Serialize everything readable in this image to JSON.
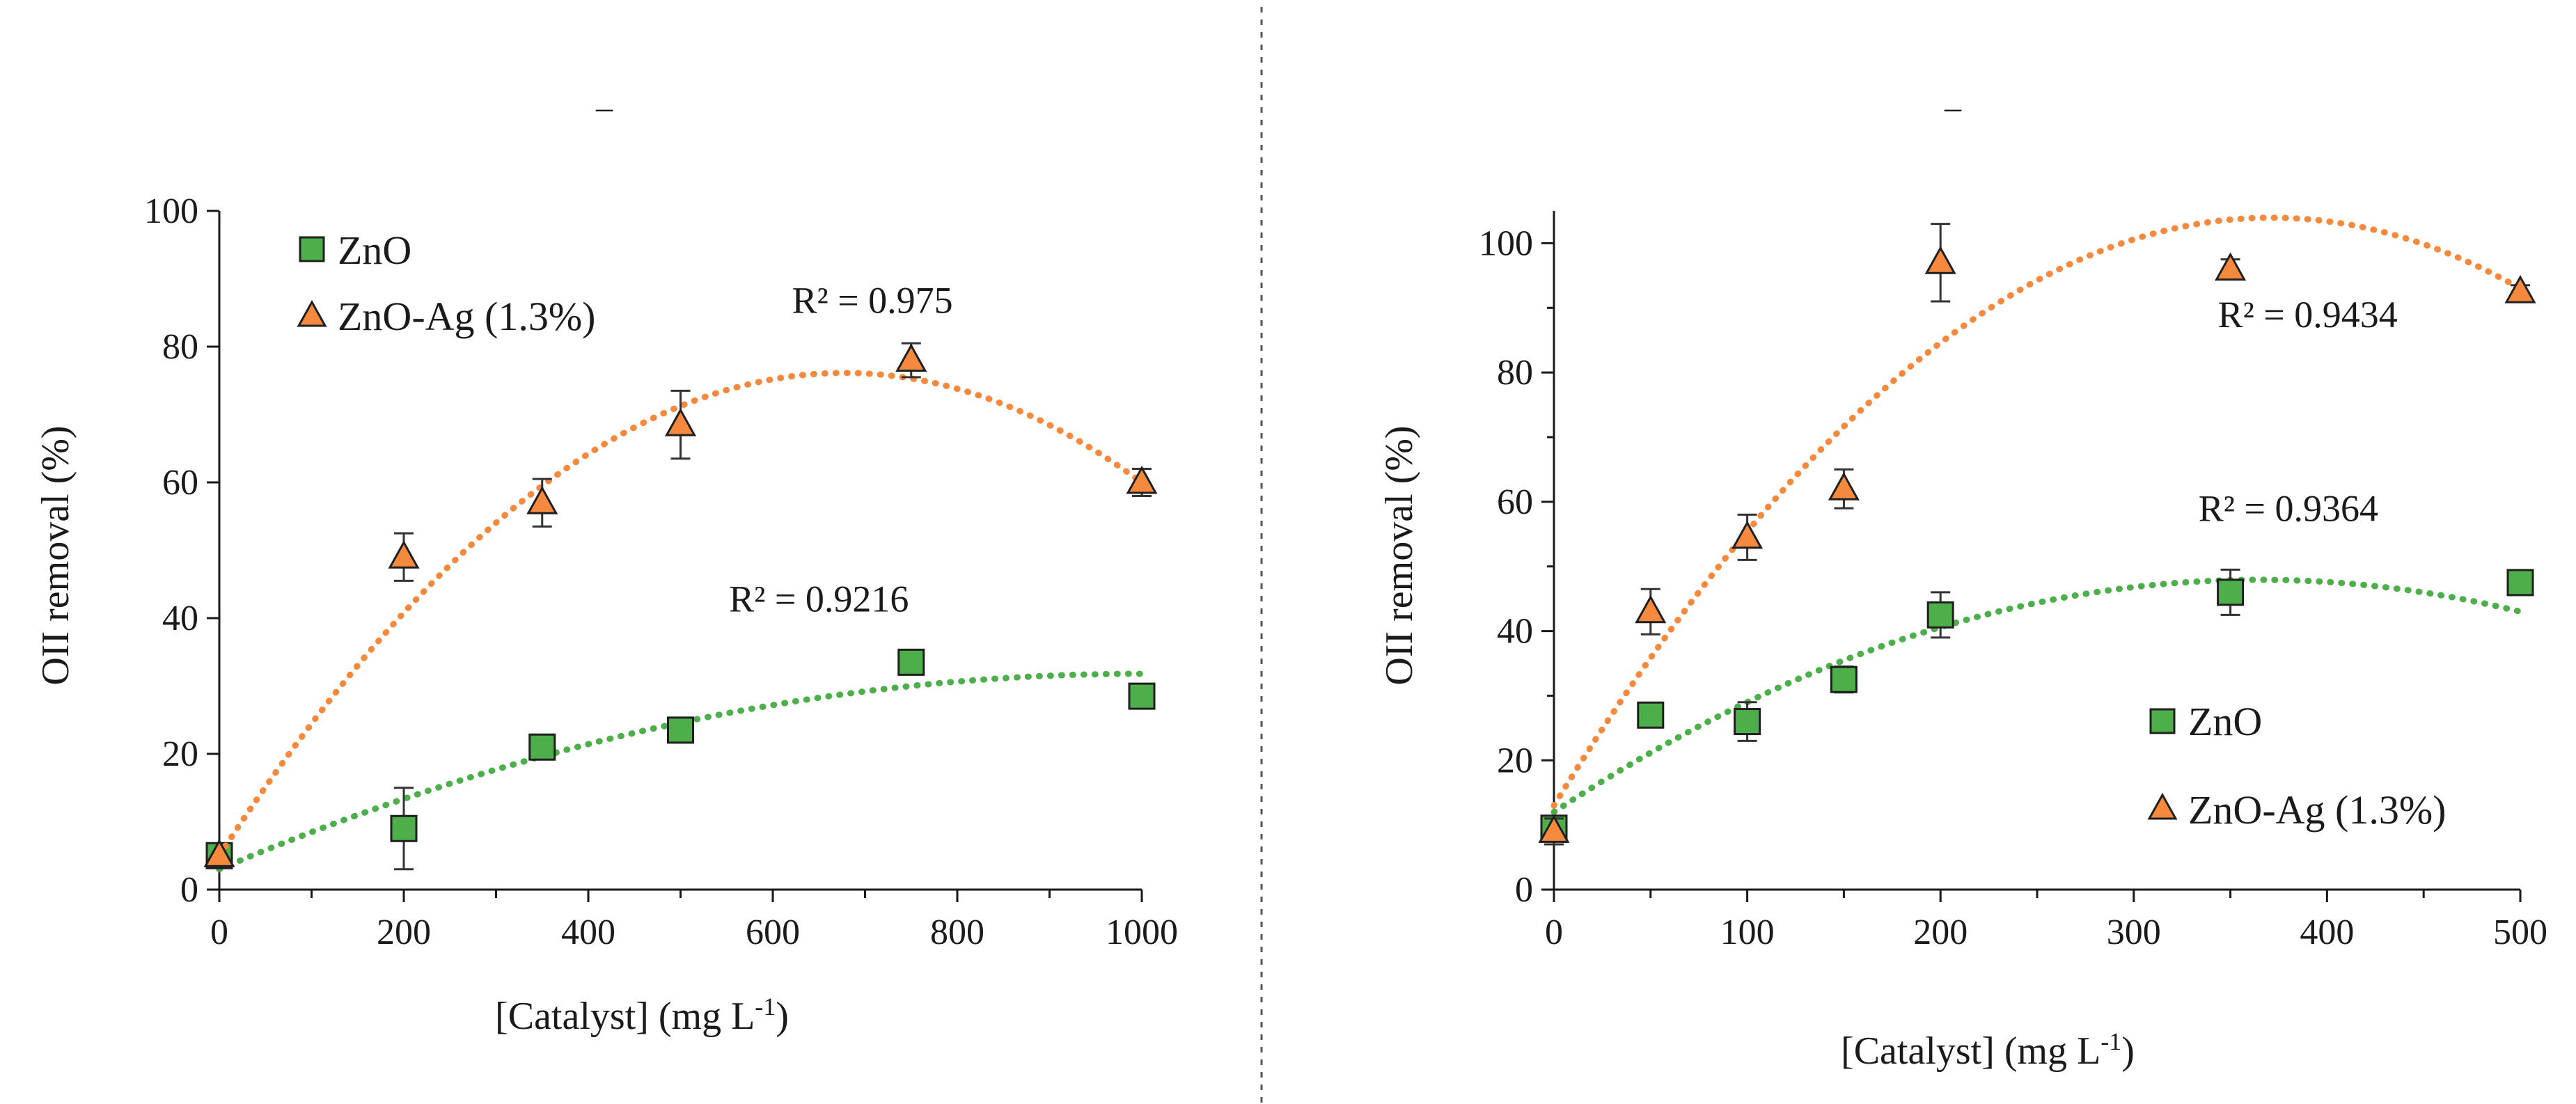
{
  "figure": {
    "background": "#ffffff",
    "divider_color": "#555555"
  },
  "colors": {
    "zno": "#4daf4a",
    "znoag": "#f58a3f",
    "zno_edge": "#1f1f1f",
    "znoag_edge": "#1f1f1f"
  },
  "chart_data": [
    {
      "type": "scatter",
      "panel_label": "–",
      "xlabel": "[Catalyst] (mg L",
      "xlabel_sup": "-1",
      "xlabel_end": ")",
      "ylabel": "OII removal (%)",
      "xlim": [
        0,
        1000
      ],
      "ylim": [
        0,
        100
      ],
      "xticks": [
        0,
        200,
        400,
        600,
        800,
        1000
      ],
      "xtick_labels": [
        "0",
        "200",
        "400",
        "600",
        "800",
        "1000"
      ],
      "minor_x_step": 100,
      "yticks": [
        0,
        20,
        40,
        60,
        80,
        100
      ],
      "ytick_labels": [
        "0",
        "20",
        "40",
        "60",
        "80",
        "100"
      ],
      "minor_y_step": 0,
      "legend": {
        "position": "top-left",
        "entries": [
          "ZnO",
          "ZnO-Ag (1.3%)"
        ]
      },
      "series": [
        {
          "name": "ZnO",
          "marker": "square",
          "color": "#4daf4a",
          "x": [
            0,
            200,
            350,
            500,
            750,
            1000
          ],
          "y": [
            5,
            9,
            21,
            23.5,
            33.5,
            28.5
          ],
          "err": [
            0,
            6,
            0,
            0,
            0,
            0
          ],
          "trend": [
            3,
            0.0576,
            -2.88e-05
          ],
          "trend_label": "R² = 0.9216",
          "label_anchor": [
            650,
            41
          ]
        },
        {
          "name": "ZnO-Ag (1.3%)",
          "marker": "triangle",
          "color": "#f58a3f",
          "x": [
            0,
            200,
            350,
            500,
            750,
            1000
          ],
          "y": [
            5,
            49,
            57,
            68.5,
            78,
            60
          ],
          "err": [
            0,
            3.5,
            3.5,
            5,
            2.5,
            2
          ],
          "trend": [
            5,
            0.21,
            -0.000155
          ],
          "trend_label": "R² = 0.975",
          "label_anchor": [
            708,
            85
          ]
        }
      ]
    },
    {
      "type": "scatter",
      "panel_label": "–",
      "xlabel": "[Catalyst] (mg L",
      "xlabel_sup": "-1",
      "xlabel_end": ")",
      "ylabel": "OII removal (%)",
      "xlim": [
        0,
        500
      ],
      "ylim": [
        0,
        105
      ],
      "xticks": [
        0,
        100,
        200,
        300,
        400,
        500
      ],
      "xtick_labels": [
        "0",
        "100",
        "200",
        "300",
        "400",
        "500"
      ],
      "minor_x_step": 50,
      "yticks": [
        0,
        20,
        40,
        60,
        80,
        100
      ],
      "ytick_labels": [
        "0",
        "20",
        "40",
        "60",
        "80",
        "100"
      ],
      "minor_y_step": 10,
      "legend": {
        "position": "bottom-right",
        "entries": [
          "ZnO",
          "ZnO-Ag (1.3%)"
        ]
      },
      "series": [
        {
          "name": "ZnO",
          "marker": "square",
          "color": "#4daf4a",
          "x": [
            0,
            50,
            100,
            150,
            200,
            350,
            500
          ],
          "y": [
            9.5,
            27,
            26,
            32.5,
            42.5,
            46,
            47.5
          ],
          "err": [
            1.5,
            1,
            3,
            2,
            3.5,
            3.5,
            1
          ],
          "trend": [
            12,
            0.197,
            -0.00027
          ],
          "trend_label": "R² = 0.9364",
          "label_anchor": [
            380,
            57
          ]
        },
        {
          "name": "ZnO-Ag (1.3%)",
          "marker": "triangle",
          "color": "#f58a3f",
          "x": [
            0,
            50,
            100,
            150,
            200,
            350,
            500
          ],
          "y": [
            9,
            43,
            54.5,
            62,
            97,
            96,
            92.5
          ],
          "err": [
            2,
            3.5,
            3.5,
            3,
            6,
            1.5,
            1
          ],
          "trend": [
            13,
            0.49,
            -0.00066
          ],
          "trend_label": "R² = 0.9434",
          "label_anchor": [
            390,
            87
          ]
        }
      ]
    }
  ]
}
